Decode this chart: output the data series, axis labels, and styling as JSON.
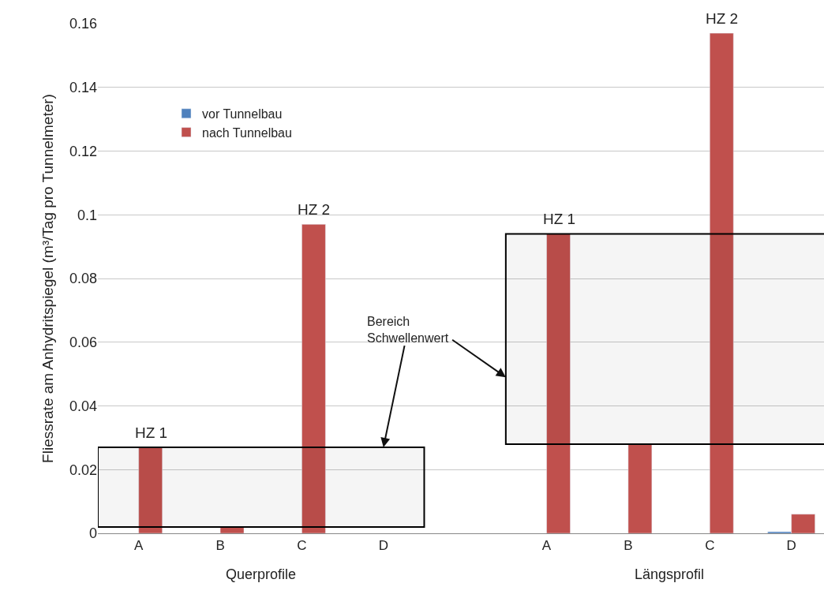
{
  "chart_data": {
    "type": "bar",
    "ylabel": "Fliessrate am Anhydritspiegel (m³/Tag pro Tunnelmeter)",
    "categories": [
      "A",
      "B",
      "C",
      "D",
      null,
      "A",
      "B",
      "C",
      "D"
    ],
    "series": [
      {
        "name": "vor Tunnelbau",
        "color": "#4f81bd",
        "values": [
          null,
          null,
          null,
          null,
          null,
          null,
          null,
          null,
          0.0005
        ]
      },
      {
        "name": "nach Tunnelbau",
        "color": "#c0504d",
        "values": [
          0.027,
          0.002,
          0.097,
          null,
          null,
          0.094,
          0.028,
          0.157,
          0.006
        ]
      }
    ],
    "ylim": [
      0,
      0.16
    ],
    "yticks": [
      0,
      0.02,
      0.04,
      0.06,
      0.08,
      0.1,
      0.12,
      0.14,
      0.16
    ],
    "grid": "y",
    "legend": "top left",
    "bands": [
      {
        "axis": "y",
        "from": 0.002,
        "to": 0.027,
        "color": "#000000"
      },
      {
        "axis": "y",
        "from": 0.028,
        "to": 0.094,
        "color": "#000000"
      }
    ],
    "annotations": [
      "HZ 1",
      "HZ 2",
      "HZ 1",
      "HZ 2",
      {
        "text": "Bereich\nSchwellenwert",
        "x": "D",
        "y": 0.027
      },
      "Querprofile",
      "Längsprofil"
    ]
  }
}
